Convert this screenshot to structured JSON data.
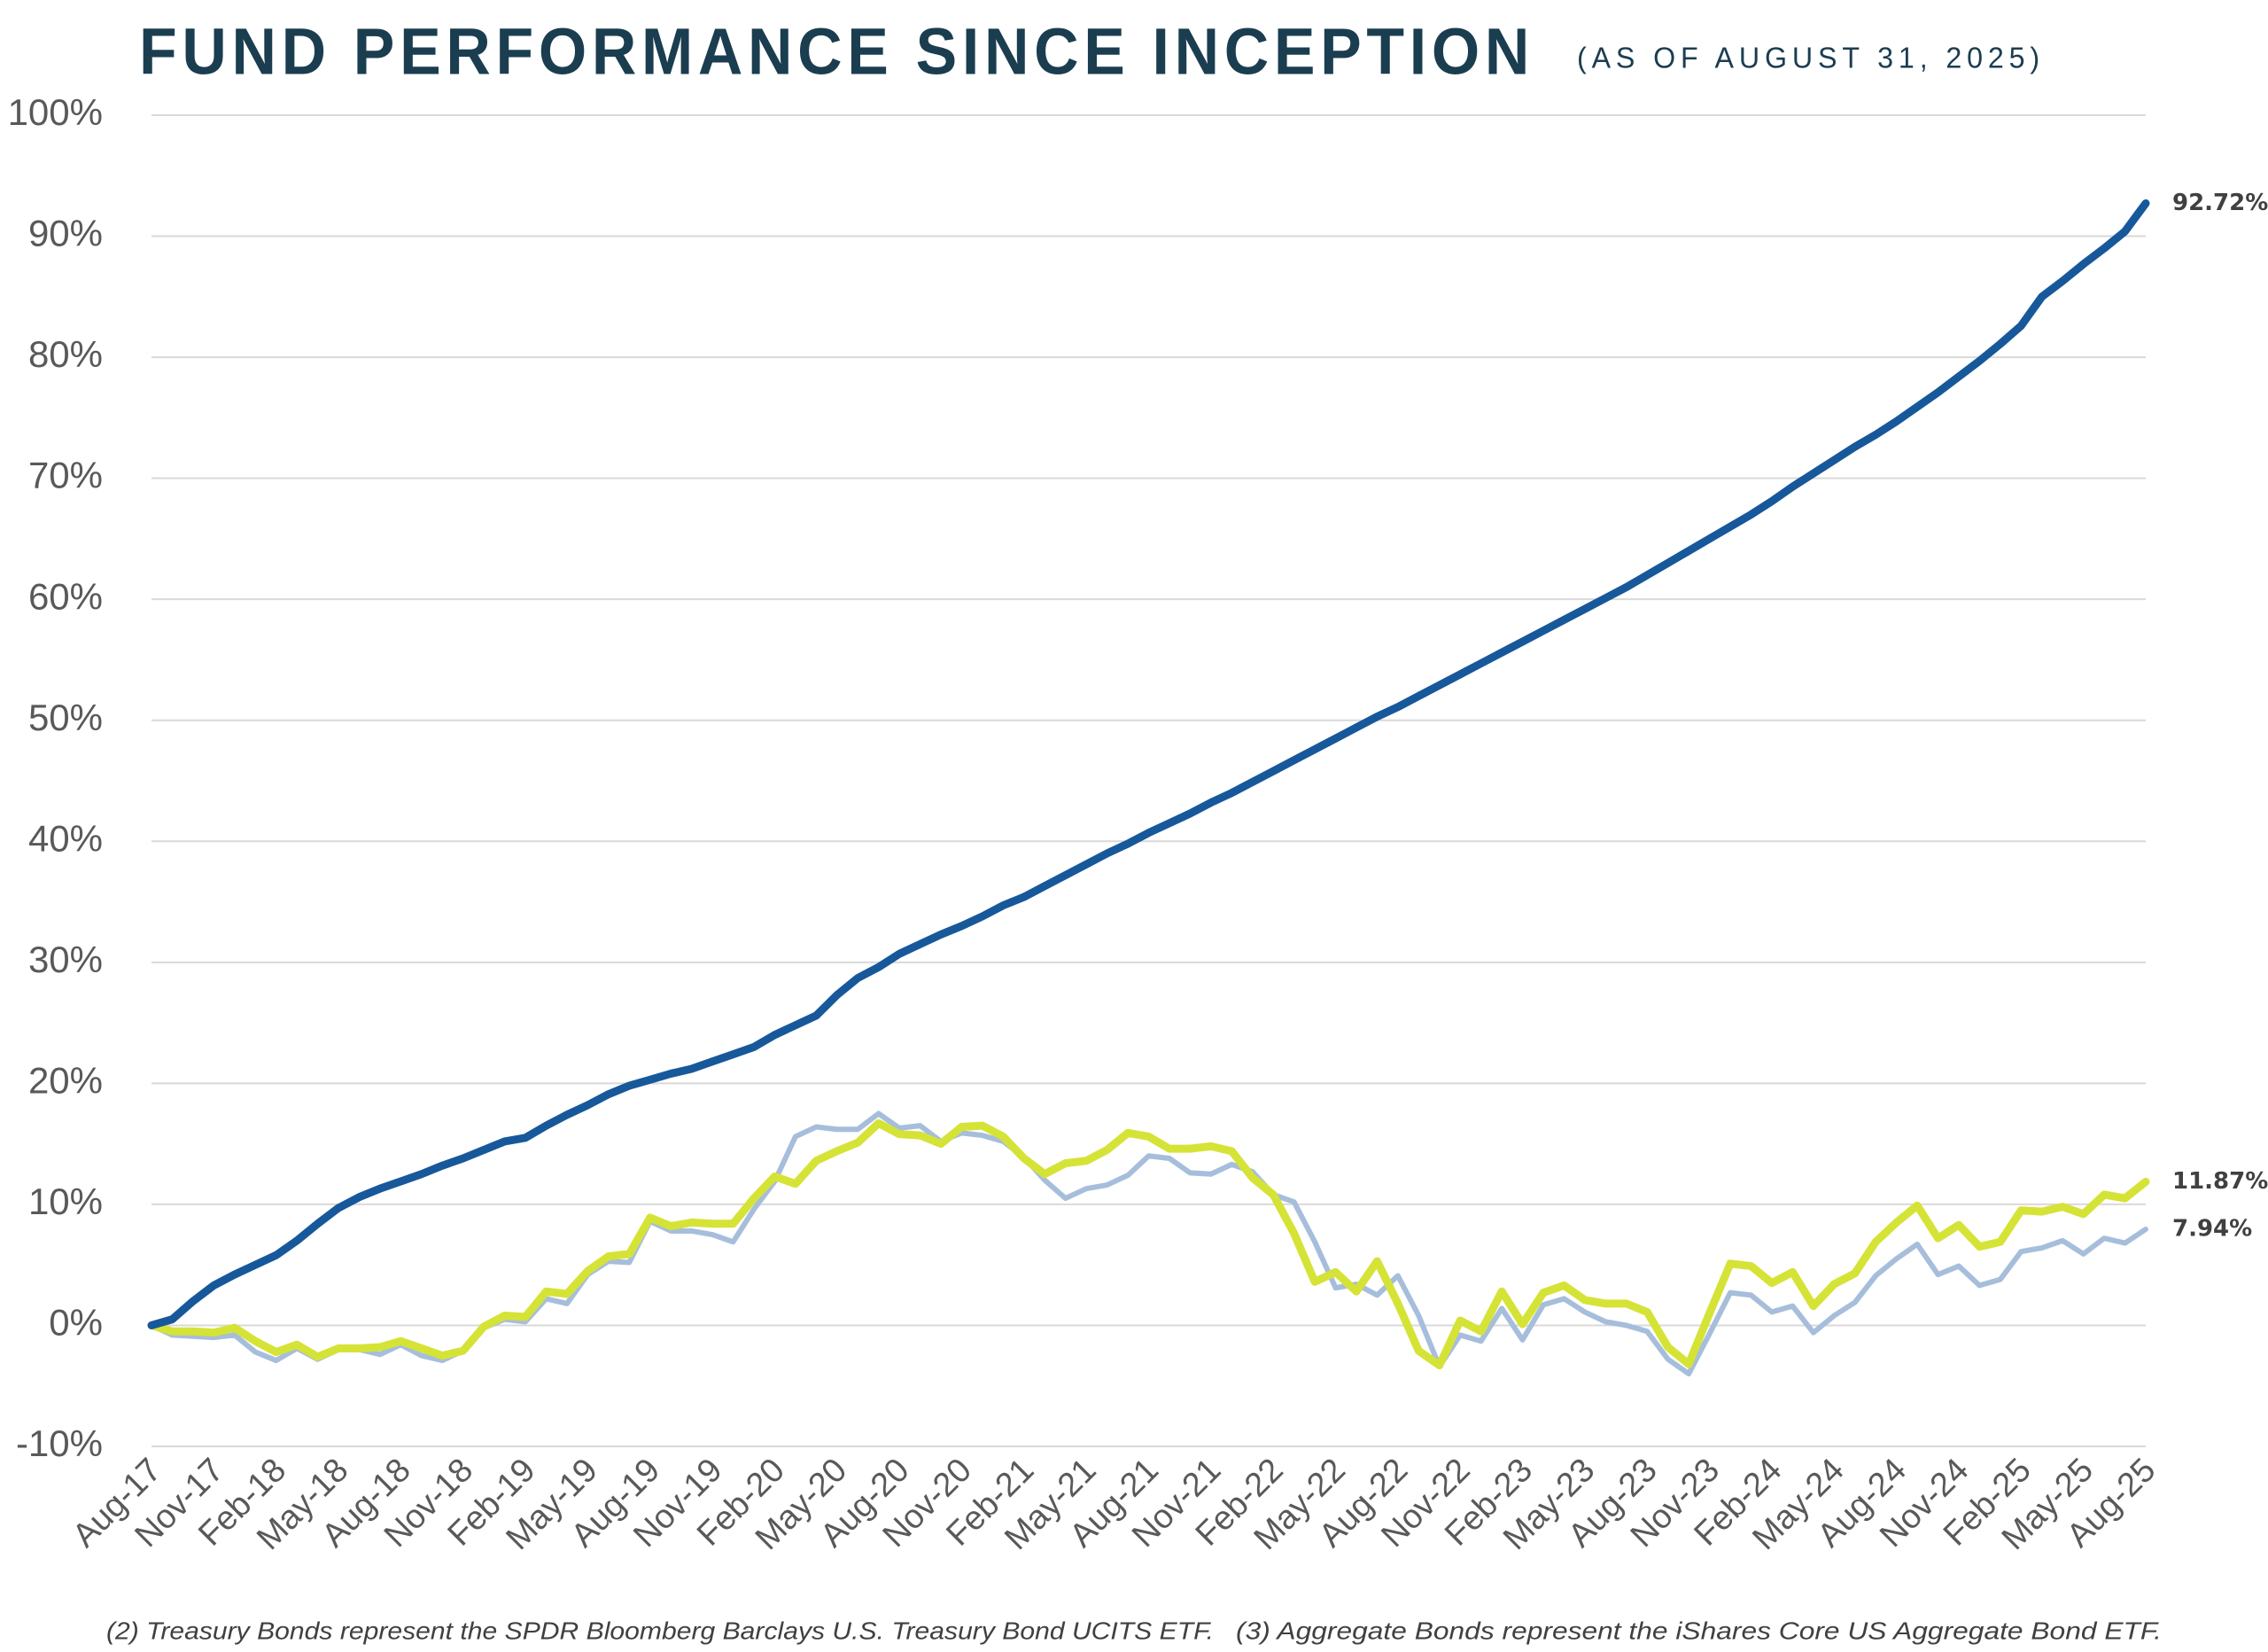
{
  "chart_data": {
    "type": "line",
    "title": "FUND PERFORMANCE SINCE INCEPTION",
    "subtitle": "(AS OF AUGUST 31, 2025)",
    "footnotes": [
      "(2) Treasury Bonds represent the SPDR Bloomberg Barclays U.S. Treasury Bond UCITS ETF.",
      "(3)  Aggregate Bonds represent the iShares Core US Aggregate Bond ETF."
    ],
    "categories": [
      "Aug-17",
      null,
      null,
      "Nov-17",
      null,
      null,
      "Feb-18",
      null,
      null,
      "May-18",
      null,
      null,
      "Aug-18",
      null,
      null,
      "Nov-18",
      null,
      null,
      "Feb-19",
      null,
      null,
      "May-19",
      null,
      null,
      "Aug-19",
      null,
      null,
      "Nov-19",
      null,
      null,
      "Feb-20",
      null,
      null,
      "May-20",
      null,
      null,
      "Aug-20",
      null,
      null,
      "Nov-20",
      null,
      null,
      "Feb-21",
      null,
      null,
      "May-21",
      null,
      null,
      "Aug-21",
      null,
      null,
      "Nov-21",
      null,
      null,
      "Feb-22",
      null,
      null,
      "May-22",
      null,
      null,
      "Aug-22",
      null,
      null,
      "Nov-22",
      null,
      null,
      "Feb-23",
      null,
      null,
      "May-23",
      null,
      null,
      "Aug-23",
      null,
      null,
      "Nov-23",
      null,
      null,
      "Feb-24",
      null,
      null,
      "May-24",
      null,
      null,
      "Aug-24",
      null,
      null,
      "Nov-24",
      null,
      null,
      "Feb-25",
      null,
      null,
      "May-25",
      null,
      null,
      "Aug-25"
    ],
    "series": [
      {
        "color": "#a6bedb",
        "end_label": "7.94%",
        "values": [
          0,
          -0.8,
          -0.9,
          -1.0,
          -0.8,
          -2.2,
          -2.9,
          -1.9,
          -2.8,
          -2.0,
          -2.0,
          -2.4,
          -1.6,
          -2.5,
          -2.9,
          -2.1,
          -0.2,
          0.5,
          0.3,
          2.2,
          1.8,
          4.2,
          5.3,
          5.2,
          8.6,
          7.8,
          7.8,
          7.5,
          6.9,
          9.6,
          11.9,
          15.6,
          16.4,
          16.2,
          16.2,
          17.5,
          16.3,
          16.5,
          15.2,
          15.9,
          15.7,
          15.2,
          13.9,
          12.0,
          10.5,
          11.3,
          11.6,
          12.4,
          14.0,
          13.8,
          12.6,
          12.5,
          13.3,
          12.7,
          10.8,
          10.2,
          6.9,
          3.1,
          3.4,
          2.5,
          4.1,
          0.8,
          -3.4,
          -0.8,
          -1.3,
          1.4,
          -1.2,
          1.7,
          2.2,
          1.1,
          0.3,
          0,
          -0.5,
          -2.8,
          -4.0,
          -0.7,
          2.7,
          2.5,
          1.1,
          1.6,
          -0.6,
          0.8,
          1.9,
          4.1,
          5.5,
          6.7,
          4.2,
          4.9,
          3.3,
          3.8,
          6.1,
          6.4,
          7.0,
          5.9,
          7.2,
          6.8,
          7.94
        ]
      },
      {
        "color": "#d5e337",
        "end_label": "11.87%",
        "values": [
          0,
          -0.5,
          -0.5,
          -0.6,
          -0.2,
          -1.3,
          -2.2,
          -1.6,
          -2.6,
          -1.9,
          -1.9,
          -1.8,
          -1.3,
          -1.9,
          -2.5,
          -2.1,
          -0.1,
          0.8,
          0.7,
          2.8,
          2.6,
          4.5,
          5.7,
          5.9,
          8.9,
          8.2,
          8.5,
          8.4,
          8.4,
          10.5,
          12.3,
          11.7,
          13.6,
          14.4,
          15.1,
          16.7,
          15.8,
          15.7,
          15.0,
          16.4,
          16.5,
          15.6,
          13.8,
          12.5,
          13.4,
          13.6,
          14.5,
          15.9,
          15.6,
          14.6,
          14.6,
          14.8,
          14.4,
          12.2,
          10.8,
          7.6,
          3.6,
          4.4,
          2.8,
          5.3,
          1.8,
          -2.1,
          -3.3,
          0.4,
          -0.5,
          2.8,
          0.1,
          2.7,
          3.3,
          2.1,
          1.8,
          1.8,
          1.1,
          -1.8,
          -3.2,
          1.0,
          5.1,
          4.9,
          3.5,
          4.4,
          1.6,
          3.4,
          4.3,
          6.9,
          8.5,
          9.9,
          7.2,
          8.3,
          6.5,
          6.9,
          9.5,
          9.4,
          9.8,
          9.2,
          10.8,
          10.5,
          11.87
        ]
      },
      {
        "color": "#17589b",
        "end_label": "92.72%",
        "values": [
          0,
          0.5,
          2.0,
          3.3,
          4.2,
          5.0,
          5.8,
          7.0,
          8.4,
          9.7,
          10.6,
          11.3,
          11.9,
          12.5,
          13.2,
          13.8,
          14.5,
          15.2,
          15.5,
          16.5,
          17.4,
          18.2,
          19.1,
          19.8,
          20.3,
          20.8,
          21.2,
          21.8,
          22.4,
          23.0,
          24.0,
          24.8,
          25.6,
          27.3,
          28.7,
          29.6,
          30.7,
          31.5,
          32.3,
          33.0,
          33.8,
          34.7,
          35.4,
          36.3,
          37.2,
          38.1,
          39.0,
          39.8,
          40.7,
          41.5,
          42.3,
          43.2,
          44.0,
          44.9,
          45.8,
          46.7,
          47.6,
          48.5,
          49.4,
          50.3,
          51.1,
          52.0,
          52.9,
          53.8,
          54.7,
          55.6,
          56.5,
          57.4,
          58.3,
          59.2,
          60.1,
          61.0,
          62.0,
          63.0,
          64.0,
          65.0,
          66.0,
          67.0,
          68.1,
          69.3,
          70.4,
          71.5,
          72.6,
          73.6,
          74.7,
          75.9,
          77.1,
          78.4,
          79.7,
          81.1,
          82.6,
          85.0,
          86.3,
          87.7,
          89.0,
          90.4,
          92.72
        ]
      }
    ],
    "ylim": [
      -10,
      100
    ],
    "yticks": [
      {
        "value": -10,
        "label": "-10%"
      },
      {
        "value": 0,
        "label": "0%"
      },
      {
        "value": 10,
        "label": "10%"
      },
      {
        "value": 20,
        "label": "20%"
      },
      {
        "value": 30,
        "label": "30%"
      },
      {
        "value": 40,
        "label": "40%"
      },
      {
        "value": 50,
        "label": "50%"
      },
      {
        "value": 60,
        "label": "60%"
      },
      {
        "value": 70,
        "label": "70%"
      },
      {
        "value": 80,
        "label": "80%"
      },
      {
        "value": 90,
        "label": "90%"
      },
      {
        "value": 100,
        "label": "100%"
      }
    ],
    "grid": true
  }
}
